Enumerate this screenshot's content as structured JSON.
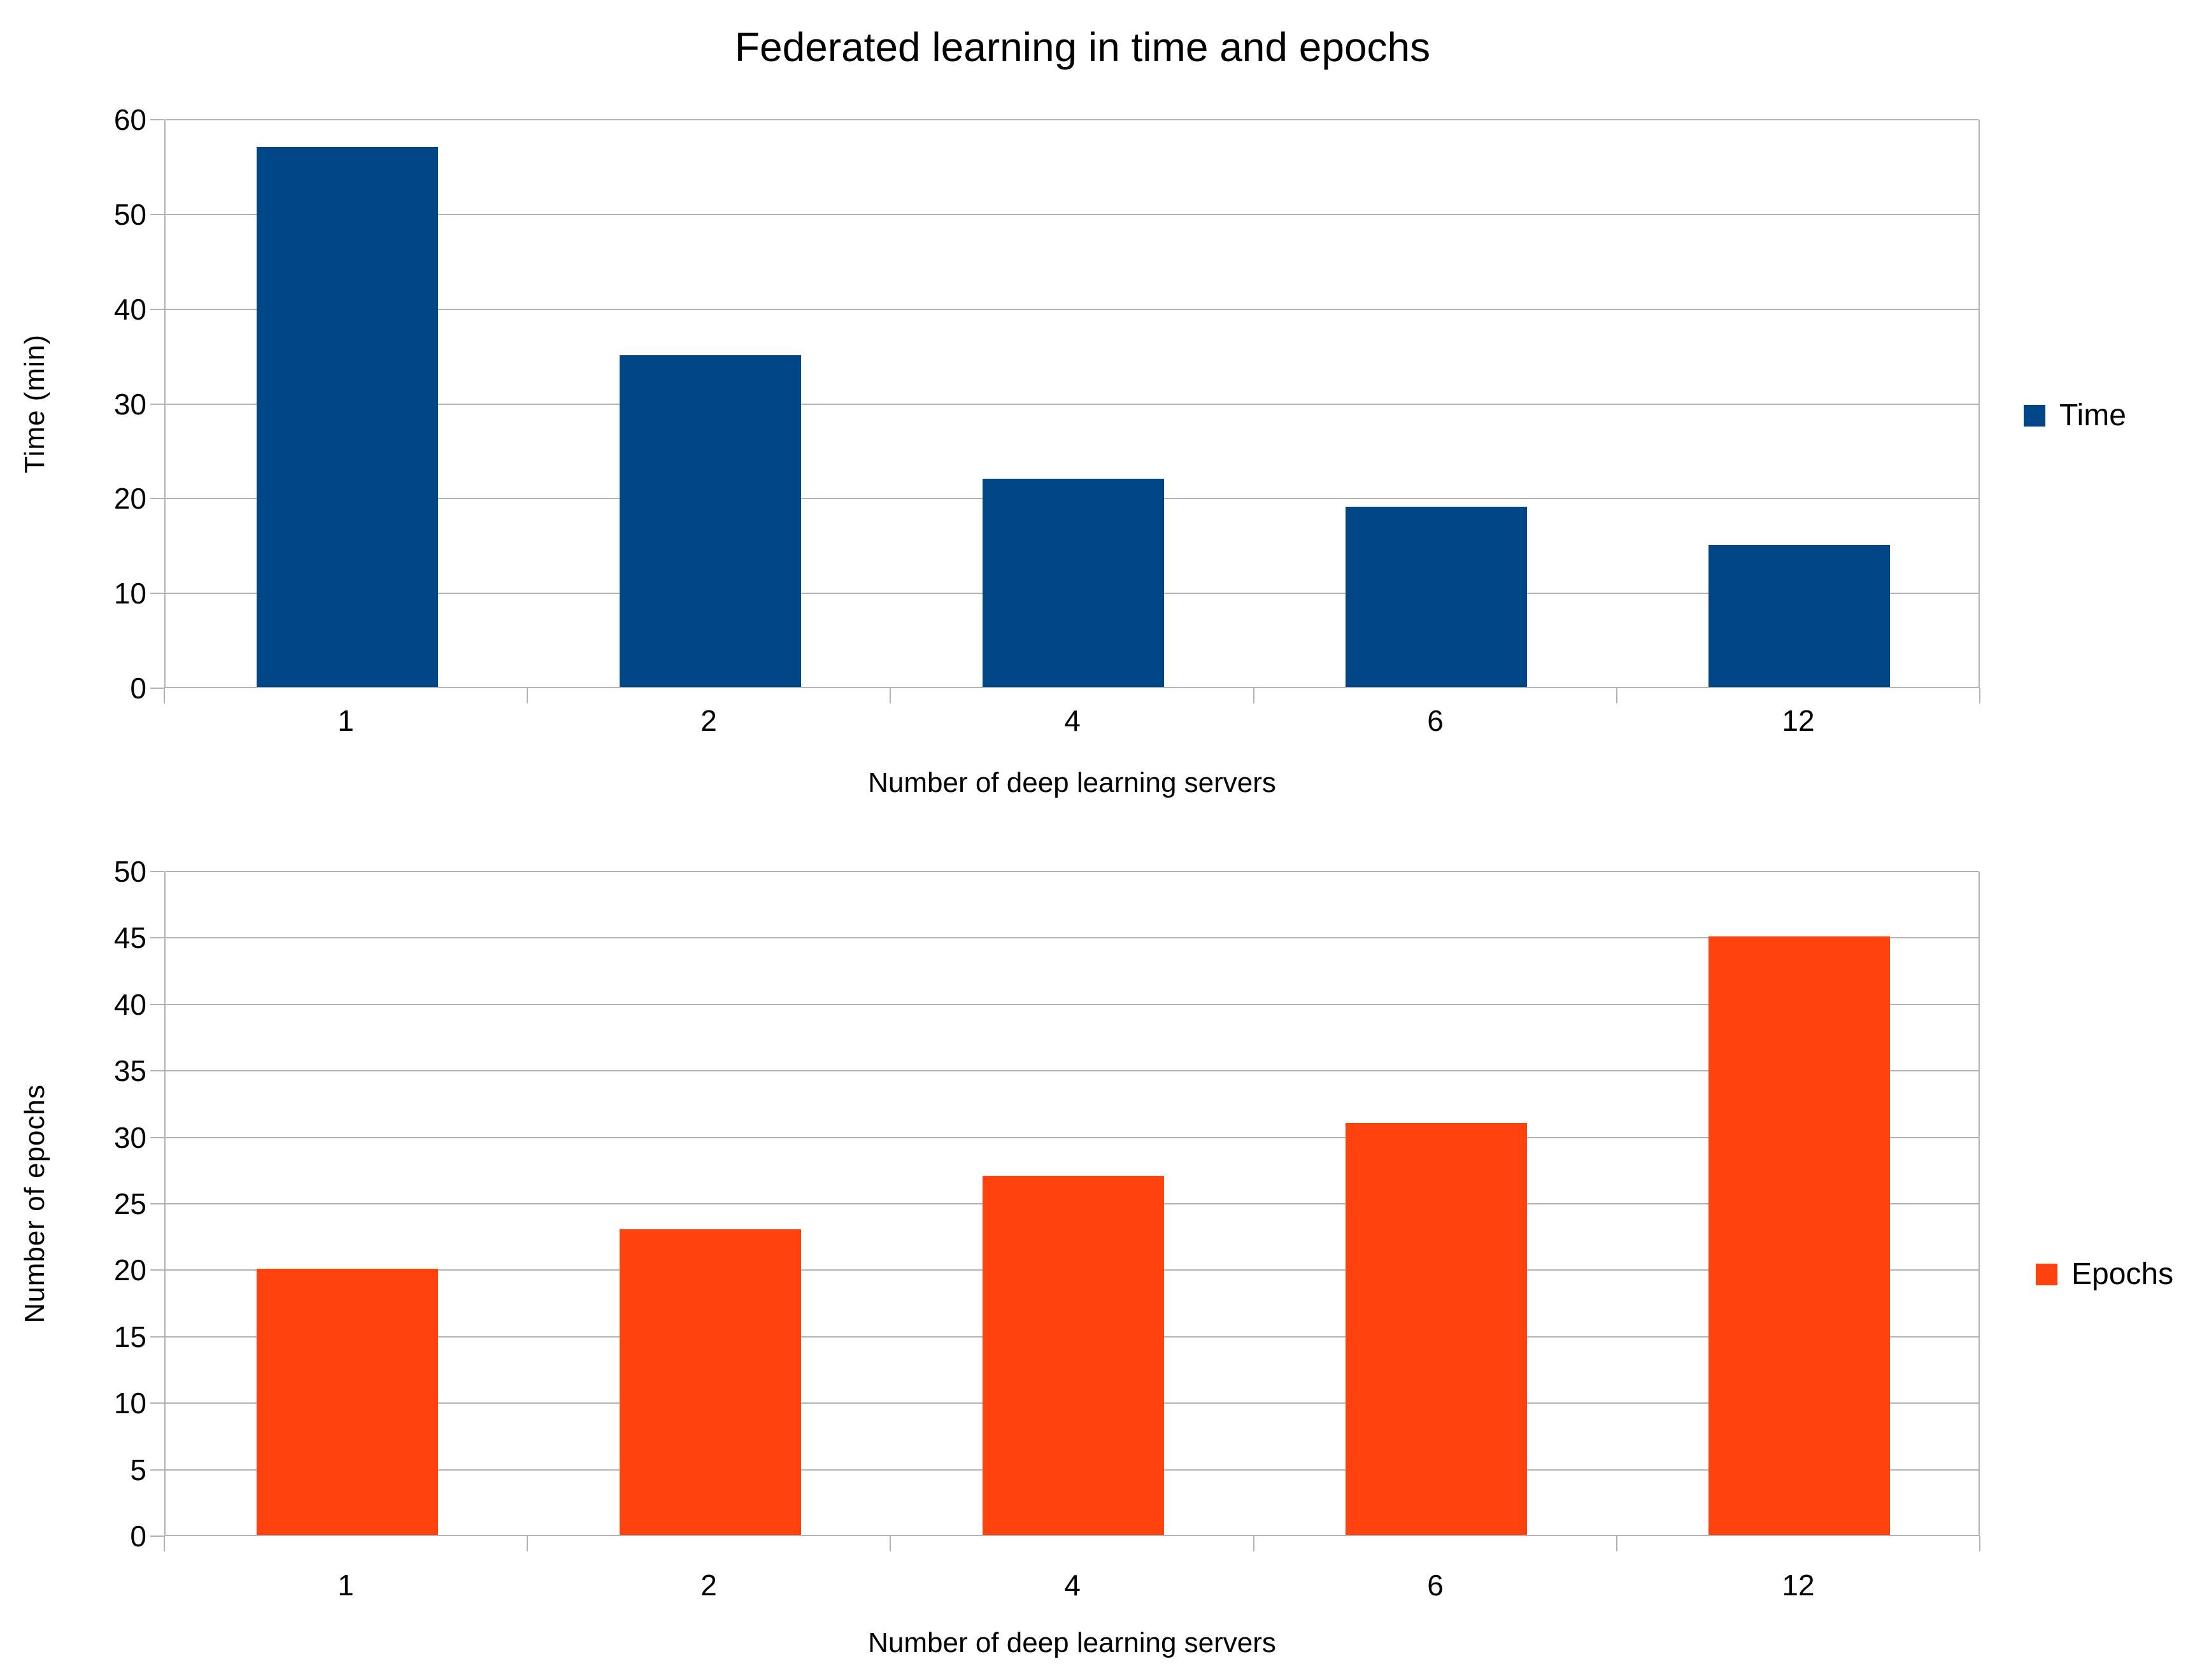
{
  "figure": {
    "title": "Federated learning in time and epochs"
  },
  "chart_data": [
    {
      "type": "bar",
      "title": "Federated learning in time and epochs",
      "categories": [
        "1",
        "2",
        "4",
        "6",
        "12"
      ],
      "series": [
        {
          "name": "Time",
          "color": "#004586",
          "values": [
            57,
            35,
            22,
            19,
            15
          ]
        }
      ],
      "xlabel": "Number of deep learning servers",
      "ylabel": "Time (min)",
      "ylim": [
        0,
        60
      ],
      "ytick_step": 10,
      "grid": true,
      "legend_position": "right"
    },
    {
      "type": "bar",
      "title": "",
      "categories": [
        "1",
        "2",
        "4",
        "6",
        "12"
      ],
      "series": [
        {
          "name": "Epochs",
          "color": "#FF420E",
          "values": [
            20,
            23,
            27,
            31,
            45
          ]
        }
      ],
      "xlabel": "Number of deep learning servers",
      "ylabel": "Number of epochs",
      "ylim": [
        0,
        50
      ],
      "ytick_step": 5,
      "grid": true,
      "legend_position": "right"
    }
  ],
  "colors": {
    "axis": "#b3b3b3",
    "text": "#000000",
    "background": "#ffffff",
    "time_series": "#004586",
    "epochs_series": "#FF420E"
  }
}
